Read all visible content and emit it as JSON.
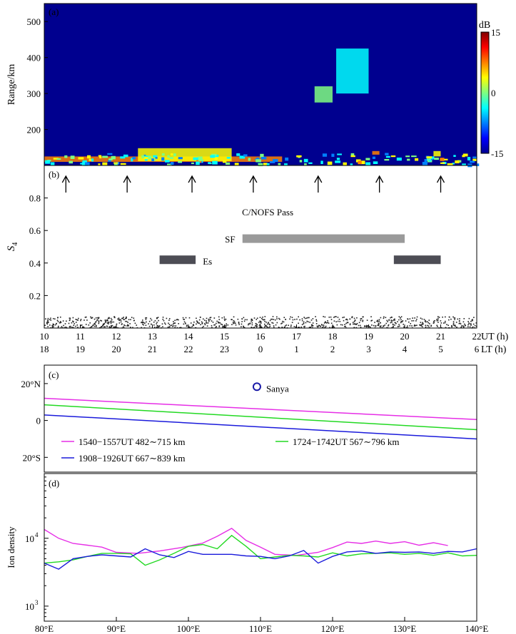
{
  "panels": {
    "a": {
      "label": "(a)",
      "ylabel": "Range/km",
      "colorbar_unit": "dB",
      "colorbar_ticks": [
        "15",
        "0",
        "-15"
      ],
      "colorbar_colors": [
        "#00008f",
        "#0000ff",
        "#0080ff",
        "#00ffff",
        "#80ff80",
        "#ffff00",
        "#ff8000",
        "#ff0000",
        "#800000"
      ]
    },
    "b": {
      "label": "(b)",
      "ylabel": "S",
      "ylabel_sub": "4",
      "pass_label": "C/NOFS Pass",
      "sf_label": "SF",
      "es_label": "Es",
      "ut_unit": "UT (h)",
      "lt_unit": "LT (h)"
    },
    "c": {
      "label": "(c)",
      "site_label": "Sanya"
    },
    "d": {
      "label": "(d)",
      "ylabel": "Ion density"
    }
  },
  "chart_data": [
    {
      "panel": "a",
      "type": "heatmap",
      "xlim": [
        10,
        22
      ],
      "ylim": [
        100,
        550
      ],
      "yticks": [
        200,
        300,
        400,
        500
      ],
      "ytick_labels": [
        "200",
        "300",
        "400",
        "500"
      ],
      "zlim": [
        -15,
        15
      ],
      "zunit": "dB",
      "background_color": "#00008f",
      "echo_bands": [
        {
          "x": [
            10.0,
            16.6
          ],
          "y": [
            110,
            125
          ],
          "level": 8
        },
        {
          "x": [
            12.6,
            15.2
          ],
          "y": [
            112,
            148
          ],
          "level": 4
        },
        {
          "x": [
            17.5,
            18.0
          ],
          "y": [
            275,
            320
          ],
          "level": 0
        },
        {
          "x": [
            18.1,
            19.0
          ],
          "y": [
            300,
            425
          ],
          "level": -2
        },
        {
          "x": [
            19.1,
            19.3
          ],
          "y": [
            130,
            140
          ],
          "level": 6
        },
        {
          "x": [
            20.8,
            21.0
          ],
          "y": [
            125,
            140
          ],
          "level": 4
        }
      ]
    },
    {
      "panel": "b",
      "type": "scatter",
      "xlim": [
        10,
        22
      ],
      "ylim": [
        0,
        1.0
      ],
      "yticks": [
        0.2,
        0.4,
        0.6,
        0.8
      ],
      "ytick_labels": [
        "0.2",
        "0.4",
        "0.6",
        "0.8"
      ],
      "ut_ticks": [
        "10",
        "11",
        "12",
        "13",
        "14",
        "15",
        "16",
        "17",
        "18",
        "19",
        "20",
        "21",
        "22"
      ],
      "lt_ticks": [
        "18",
        "19",
        "20",
        "21",
        "22",
        "23",
        "0",
        "1",
        "2",
        "3",
        "4",
        "5",
        "6"
      ],
      "s4_range": [
        0.0,
        0.07
      ],
      "pass_times_ut": [
        10.6,
        12.3,
        14.1,
        15.8,
        17.6,
        19.3,
        21.0
      ],
      "sf_interval_ut": [
        15.5,
        20.0
      ],
      "sf_level": 0.55,
      "sf_color": "#9a9a9a",
      "es_intervals_ut": [
        [
          13.2,
          14.2
        ],
        [
          19.7,
          21.0
        ]
      ],
      "es_level": 0.42,
      "es_color": "#4d4d55"
    },
    {
      "panel": "c",
      "type": "line",
      "xlim": [
        80,
        140
      ],
      "ylim": [
        -28,
        30
      ],
      "yticks": [
        20,
        0,
        -20
      ],
      "ytick_labels": [
        "20°N",
        "0",
        "20°S"
      ],
      "site": {
        "lon": 109.5,
        "lat": 18.3
      },
      "site_color": "#1a1aa8",
      "series": [
        {
          "name": "1540−1557UT  482∼715 km",
          "color": "#e62ee6",
          "lat_start": 12,
          "lat_end": 0.5
        },
        {
          "name": "1724−1742UT  567∼796 km",
          "color": "#22d922",
          "lat_start": 8.5,
          "lat_end": -5
        },
        {
          "name": "1908−1926UT  667∼839 km",
          "color": "#1a1adb",
          "lat_start": 3,
          "lat_end": -10
        }
      ]
    },
    {
      "panel": "d",
      "type": "line",
      "xlim": [
        80,
        140
      ],
      "xticks": [
        "80°E",
        "90°E",
        "100°E",
        "110°E",
        "120°E",
        "130°E",
        "140°E"
      ],
      "ylim": [
        600,
        90000
      ],
      "yscale": "log",
      "yticks": [
        "10",
        "10"
      ],
      "ytick_exponents": [
        "3",
        "4"
      ],
      "ytick_values": [
        1000,
        10000
      ],
      "series": [
        {
          "color": "#e62ee6",
          "lon": [
            80,
            82,
            84,
            86,
            88,
            90,
            93,
            96,
            99,
            102,
            104,
            106,
            108,
            110,
            112,
            115,
            118,
            120,
            122,
            124,
            126,
            128,
            130,
            132,
            134,
            136
          ],
          "values": [
            13500,
            10000,
            8400,
            7900,
            7400,
            6200,
            6000,
            6500,
            7300,
            8500,
            10700,
            14000,
            9300,
            7400,
            5800,
            5600,
            6200,
            7300,
            8800,
            8400,
            9100,
            8400,
            8900,
            7900,
            8600,
            7800
          ]
        },
        {
          "color": "#22d922",
          "lon": [
            80,
            82,
            84,
            86,
            88,
            90,
            92,
            94,
            96,
            98,
            100,
            102,
            104,
            106,
            108,
            110,
            112,
            114,
            116,
            118,
            120,
            122,
            124,
            126,
            128,
            130,
            132,
            134,
            136,
            138,
            140
          ],
          "values": [
            4300,
            4500,
            4800,
            5400,
            6000,
            6000,
            5900,
            4000,
            4800,
            6000,
            7600,
            8100,
            7000,
            11000,
            7600,
            5000,
            5300,
            5600,
            5500,
            5300,
            6100,
            5500,
            5900,
            6000,
            6100,
            5800,
            6000,
            5600,
            6100,
            5500,
            5600
          ]
        },
        {
          "color": "#1a1adb",
          "lon": [
            80,
            82,
            84,
            86,
            88,
            90,
            92,
            94,
            96,
            98,
            100,
            102,
            104,
            106,
            108,
            110,
            112,
            114,
            116,
            118,
            120,
            122,
            124,
            126,
            128,
            130,
            132,
            134,
            136,
            138,
            140
          ],
          "values": [
            4300,
            3500,
            5000,
            5400,
            5700,
            5500,
            5300,
            7000,
            5700,
            5200,
            6400,
            5800,
            5800,
            5800,
            5500,
            5400,
            5000,
            5500,
            6600,
            4300,
            5400,
            6300,
            6500,
            6000,
            6300,
            6200,
            6300,
            6000,
            6400,
            6300,
            7000
          ]
        }
      ]
    }
  ]
}
